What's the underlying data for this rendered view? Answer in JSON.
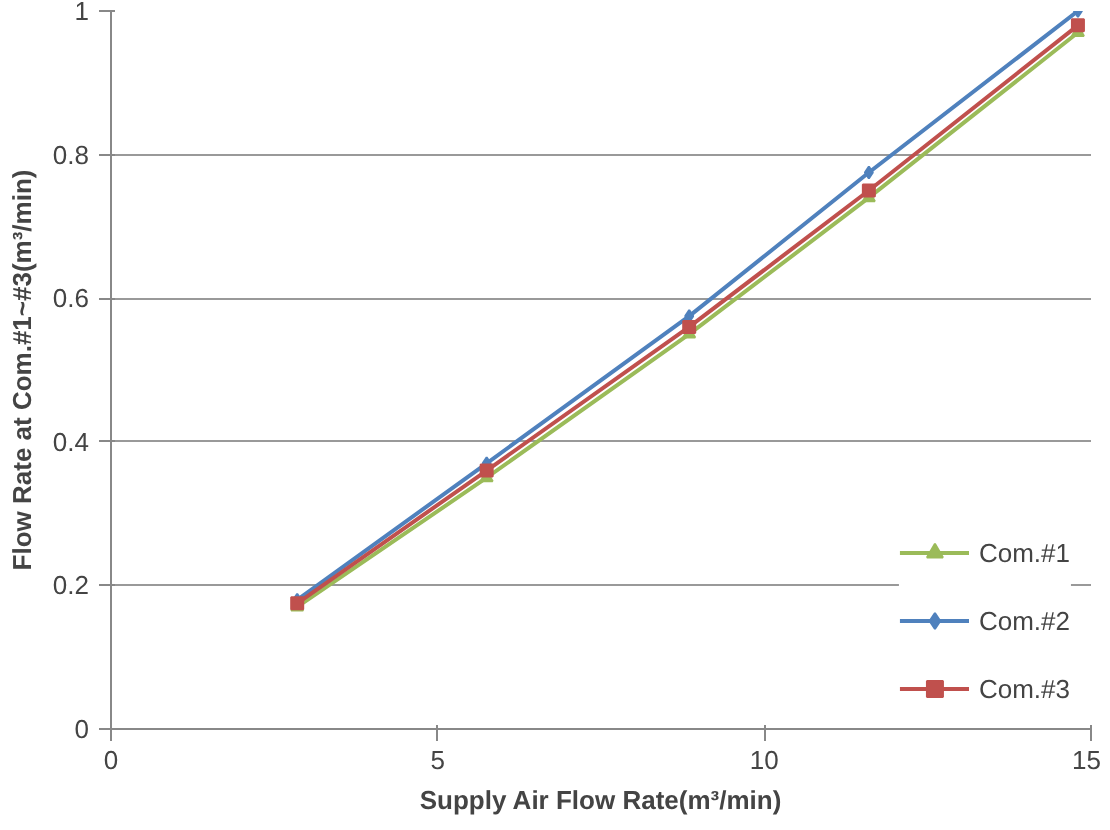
{
  "chart_data": {
    "type": "line",
    "xlabel": "Supply Air Flow Rate(m³/min)",
    "ylabel": "Flow Rate at Com.#1~#3(m³/min)",
    "x": [
      2.85,
      5.75,
      8.85,
      11.6,
      14.8
    ],
    "series": [
      {
        "name": "Com.#1",
        "color": "#9bbb59",
        "marker": "triangle",
        "values": [
          0.17,
          0.35,
          0.55,
          0.74,
          0.97
        ]
      },
      {
        "name": "Com.#2",
        "color": "#4f81bd",
        "marker": "diamond",
        "values": [
          0.18,
          0.37,
          0.575,
          0.775,
          1.0
        ]
      },
      {
        "name": "Com.#3",
        "color": "#c0504d",
        "marker": "square",
        "values": [
          0.175,
          0.36,
          0.56,
          0.75,
          0.98
        ]
      }
    ],
    "xlim": [
      0,
      15
    ],
    "xticks": [
      0,
      5,
      10,
      15
    ],
    "ylim": [
      0,
      1
    ],
    "yticks": [
      0,
      0.2,
      0.4,
      0.6,
      0.8,
      1
    ],
    "grid": "y",
    "legend": "bottom right"
  }
}
